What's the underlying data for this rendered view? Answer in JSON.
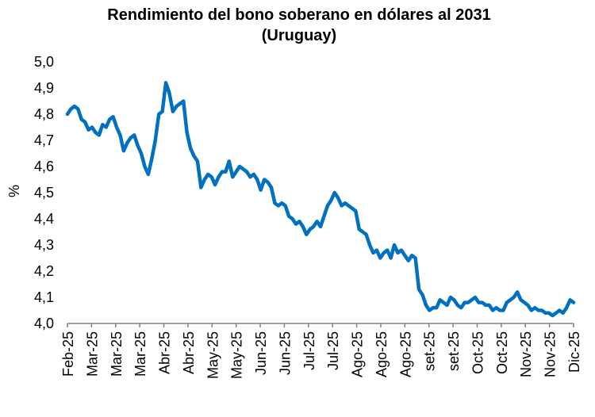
{
  "chart_data": {
    "type": "line",
    "title": "Rendimiento del bono soberano en dólares al 2031",
    "subtitle": "(Uruguay)",
    "xlabel": "",
    "ylabel": "%",
    "ylim": [
      4.0,
      5.0
    ],
    "yticks": [
      "4,0",
      "4,1",
      "4,2",
      "4,3",
      "4,4",
      "4,5",
      "4,6",
      "4,7",
      "4,8",
      "4,9",
      "5,0"
    ],
    "xtick_labels": [
      "Feb-25",
      "Mar-25",
      "Mar-25",
      "Mar-25",
      "Abr-25",
      "Abr-25",
      "May-25",
      "May-25",
      "Jun-25",
      "Jun-25",
      "Jul-25",
      "Jul-25",
      "Ago-25",
      "Ago-25",
      "Ago-25",
      "set-25",
      "set-25",
      "Oct-25",
      "Oct-25",
      "Nov-25",
      "Nov-25",
      "Dic-25"
    ],
    "grid": false,
    "legend": "none",
    "colors": {
      "line": "#0070C0",
      "axis": "#808080",
      "text": "#000000"
    },
    "series": [
      {
        "values": [
          4.8,
          4.82,
          4.83,
          4.82,
          4.78,
          4.77,
          4.74,
          4.75,
          4.73,
          4.72,
          4.76,
          4.75,
          4.78,
          4.79,
          4.75,
          4.72,
          4.66,
          4.69,
          4.71,
          4.72,
          4.68,
          4.65,
          4.6,
          4.57,
          4.63,
          4.7,
          4.8,
          4.81,
          4.92,
          4.88,
          4.81,
          4.83,
          4.84,
          4.85,
          4.73,
          4.67,
          4.64,
          4.62,
          4.52,
          4.55,
          4.57,
          4.56,
          4.53,
          4.56,
          4.58,
          4.58,
          4.62,
          4.56,
          4.58,
          4.6,
          4.59,
          4.58,
          4.56,
          4.57,
          4.55,
          4.51,
          4.55,
          4.54,
          4.52,
          4.46,
          4.45,
          4.46,
          4.45,
          4.41,
          4.4,
          4.38,
          4.39,
          4.37,
          4.34,
          4.36,
          4.37,
          4.39,
          4.37,
          4.41,
          4.45,
          4.47,
          4.5,
          4.48,
          4.45,
          4.46,
          4.45,
          4.44,
          4.43,
          4.36,
          4.35,
          4.34,
          4.3,
          4.27,
          4.28,
          4.25,
          4.27,
          4.28,
          4.25,
          4.3,
          4.27,
          4.28,
          4.26,
          4.24,
          4.26,
          4.25,
          4.13,
          4.11,
          4.07,
          4.05,
          4.06,
          4.06,
          4.09,
          4.08,
          4.07,
          4.1,
          4.09,
          4.07,
          4.06,
          4.08,
          4.08,
          4.09,
          4.1,
          4.08,
          4.08,
          4.07,
          4.07,
          4.05,
          4.06,
          4.05,
          4.05,
          4.08,
          4.09,
          4.1,
          4.12,
          4.09,
          4.08,
          4.07,
          4.05,
          4.06,
          4.05,
          4.05,
          4.04,
          4.04,
          4.03,
          4.04,
          4.05,
          4.04,
          4.06,
          4.09,
          4.08
        ]
      }
    ]
  }
}
